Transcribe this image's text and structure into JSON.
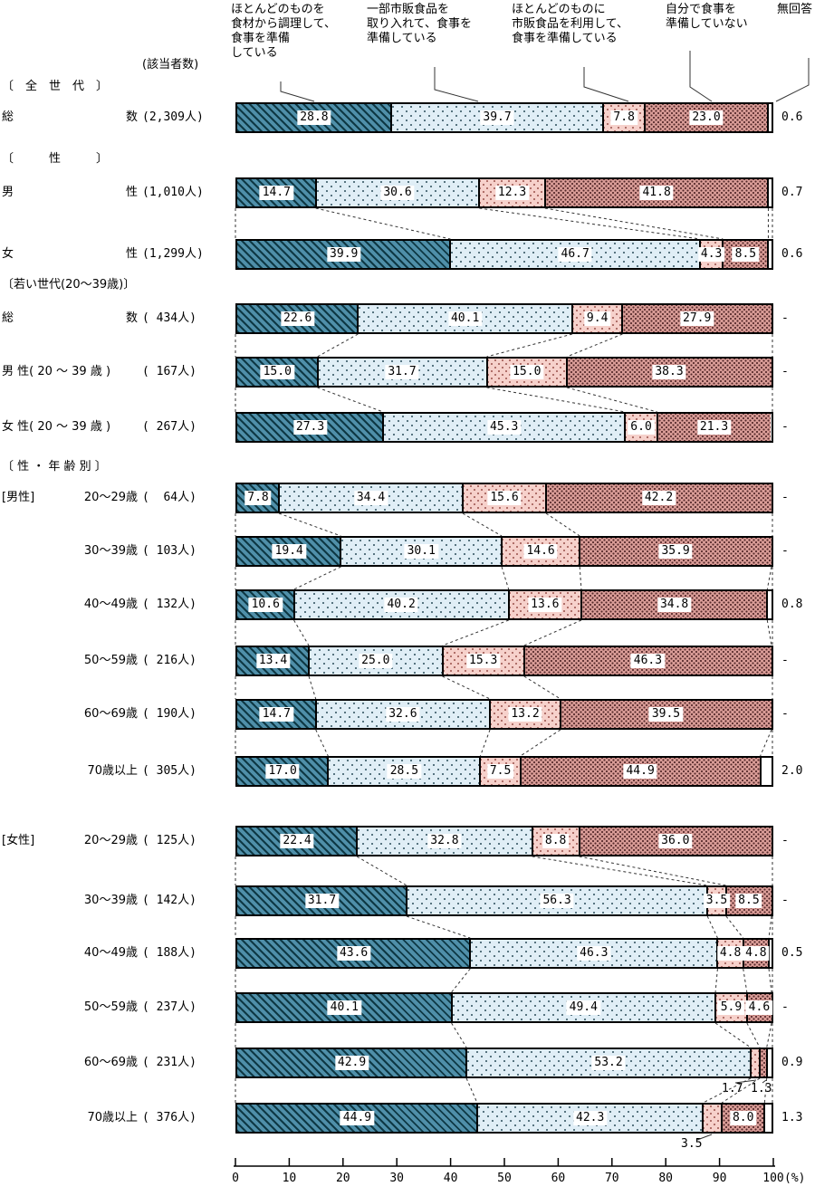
{
  "legend": {
    "items": [
      "ほとんどのものを\n食材から調理して、\n食事を準備\nしている",
      "一部市販食品を\n取り入れて、食事を\n準備している",
      "ほとんどのものに\n市販食品を利用して、\n食事を準備している",
      "自分で食事を\n準備していない",
      "無回答"
    ]
  },
  "header": {
    "respondents_label": "(該当者数)"
  },
  "section_headers": {
    "all_generations": "〔　全　世　代　〕",
    "sex": "〔　　　性　　　〕",
    "young_generation": "〔若い世代(20〜39歳)〕",
    "sex_age": "〔 性 ・ 年 齢 別 〕"
  },
  "axis": {
    "ticks": [
      "0",
      "10",
      "20",
      "30",
      "40",
      "50",
      "60",
      "70",
      "80",
      "90",
      "100"
    ],
    "unit_label": "(%)",
    "min": 0,
    "max": 100
  },
  "colors": {
    "segment_fill_1": "#4f8fa9",
    "segment_hatch_1": "#0e3844",
    "segment_fill_2": "#e0eef6",
    "segment_dot_2": "#42616e",
    "segment_fill_3": "#f6d1cb",
    "segment_dot_3": "#9b544e",
    "segment_fill_4": "#d99c97",
    "segment_dot_4": "#54292a",
    "bar_border": "#000000"
  },
  "chart_data": {
    "type": "bar",
    "stacked": true,
    "orientation": "horizontal",
    "xlim": [
      0,
      100
    ],
    "unit": "%",
    "series_names": [
      "ほとんどのものを食材から調理して、食事を準備している",
      "一部市販食品を取り入れて、食事を準備している",
      "ほとんどのものに市販食品を利用して、食事を準備している",
      "自分で食事を準備していない",
      "無回答"
    ],
    "rows": [
      {
        "section": "all_generations",
        "label": "総数",
        "justify": true,
        "count": "(2,309人)",
        "values": [
          28.8,
          39.7,
          7.8,
          23.0
        ],
        "no_answer": "0.6",
        "connects_to_previous": false
      },
      {
        "section": "sex",
        "label": "男性",
        "justify": true,
        "count": "(1,010人)",
        "values": [
          14.7,
          30.6,
          12.3,
          41.8
        ],
        "no_answer": "0.7",
        "connects_to_previous": false
      },
      {
        "label": "女性",
        "justify": true,
        "count": "(1,299人)",
        "values": [
          39.9,
          46.7,
          4.3,
          8.5
        ],
        "no_answer": "0.6",
        "connects_to_previous": true
      },
      {
        "section": "young_generation",
        "label": "総数",
        "justify": true,
        "count": "( 434人)",
        "values": [
          22.6,
          40.1,
          9.4,
          27.9
        ],
        "no_answer": "-",
        "connects_to_previous": false
      },
      {
        "label": "男 性( 20 〜 39 歳 )",
        "count": "( 167人)",
        "values": [
          15.0,
          31.7,
          15.0,
          38.3
        ],
        "no_answer": "-",
        "connects_to_previous": true
      },
      {
        "label": "女 性( 20 〜 39 歳 )",
        "count": "( 267人)",
        "values": [
          27.3,
          45.3,
          6.0,
          21.3
        ],
        "no_answer": "-",
        "connects_to_previous": true
      },
      {
        "section": "sex_age",
        "side": "[男性]",
        "label": "20〜29歳",
        "count": "(  64人)",
        "values": [
          7.8,
          34.4,
          15.6,
          42.2
        ],
        "no_answer": "-",
        "connects_to_previous": false
      },
      {
        "label": "30〜39歳",
        "count": "( 103人)",
        "values": [
          19.4,
          30.1,
          14.6,
          35.9
        ],
        "no_answer": "-",
        "connects_to_previous": true
      },
      {
        "label": "40〜49歳",
        "count": "( 132人)",
        "values": [
          10.6,
          40.2,
          13.6,
          34.8
        ],
        "no_answer": "0.8",
        "connects_to_previous": true
      },
      {
        "label": "50〜59歳",
        "count": "( 216人)",
        "values": [
          13.4,
          25.0,
          15.3,
          46.3
        ],
        "no_answer": "-",
        "connects_to_previous": true
      },
      {
        "label": "60〜69歳",
        "count": "( 190人)",
        "values": [
          14.7,
          32.6,
          13.2,
          39.5
        ],
        "no_answer": "-",
        "connects_to_previous": true
      },
      {
        "label": "70歳以上",
        "count": "( 305人)",
        "values": [
          17.0,
          28.5,
          7.5,
          44.9
        ],
        "no_answer": "2.0",
        "connects_to_previous": true
      },
      {
        "side": "[女性]",
        "label": "20〜29歳",
        "count": "( 125人)",
        "values": [
          22.4,
          32.8,
          8.8,
          36.0
        ],
        "no_answer": "-",
        "connects_to_previous": false
      },
      {
        "label": "30〜39歳",
        "count": "( 142人)",
        "values": [
          31.7,
          56.3,
          3.5,
          8.5
        ],
        "no_answer": "-",
        "connects_to_previous": true
      },
      {
        "label": "40〜49歳",
        "count": "( 188人)",
        "values": [
          43.6,
          46.3,
          4.8,
          4.8
        ],
        "no_answer": "0.5",
        "connects_to_previous": true
      },
      {
        "label": "50〜59歳",
        "count": "( 237人)",
        "values": [
          40.1,
          49.4,
          5.9,
          4.6
        ],
        "no_answer": "-",
        "connects_to_previous": true
      },
      {
        "label": "60〜69歳",
        "count": "( 231人)",
        "values": [
          42.9,
          53.2,
          1.7,
          1.3
        ],
        "no_answer": "0.9",
        "connects_to_previous": true,
        "hidden_segment_labels": [
          2,
          3
        ],
        "external_labels": [
          {
            "value": "1.7",
            "segment": 3
          },
          {
            "value": "1.3",
            "segment": 4
          }
        ]
      },
      {
        "label": "70歳以上",
        "count": "( 376人)",
        "values": [
          44.9,
          42.3,
          3.5,
          8.0
        ],
        "no_answer": "1.3",
        "connects_to_previous": true,
        "hidden_segment_labels": [
          2
        ],
        "external_labels": [
          {
            "value": "3.5",
            "segment": 3
          }
        ]
      }
    ]
  }
}
